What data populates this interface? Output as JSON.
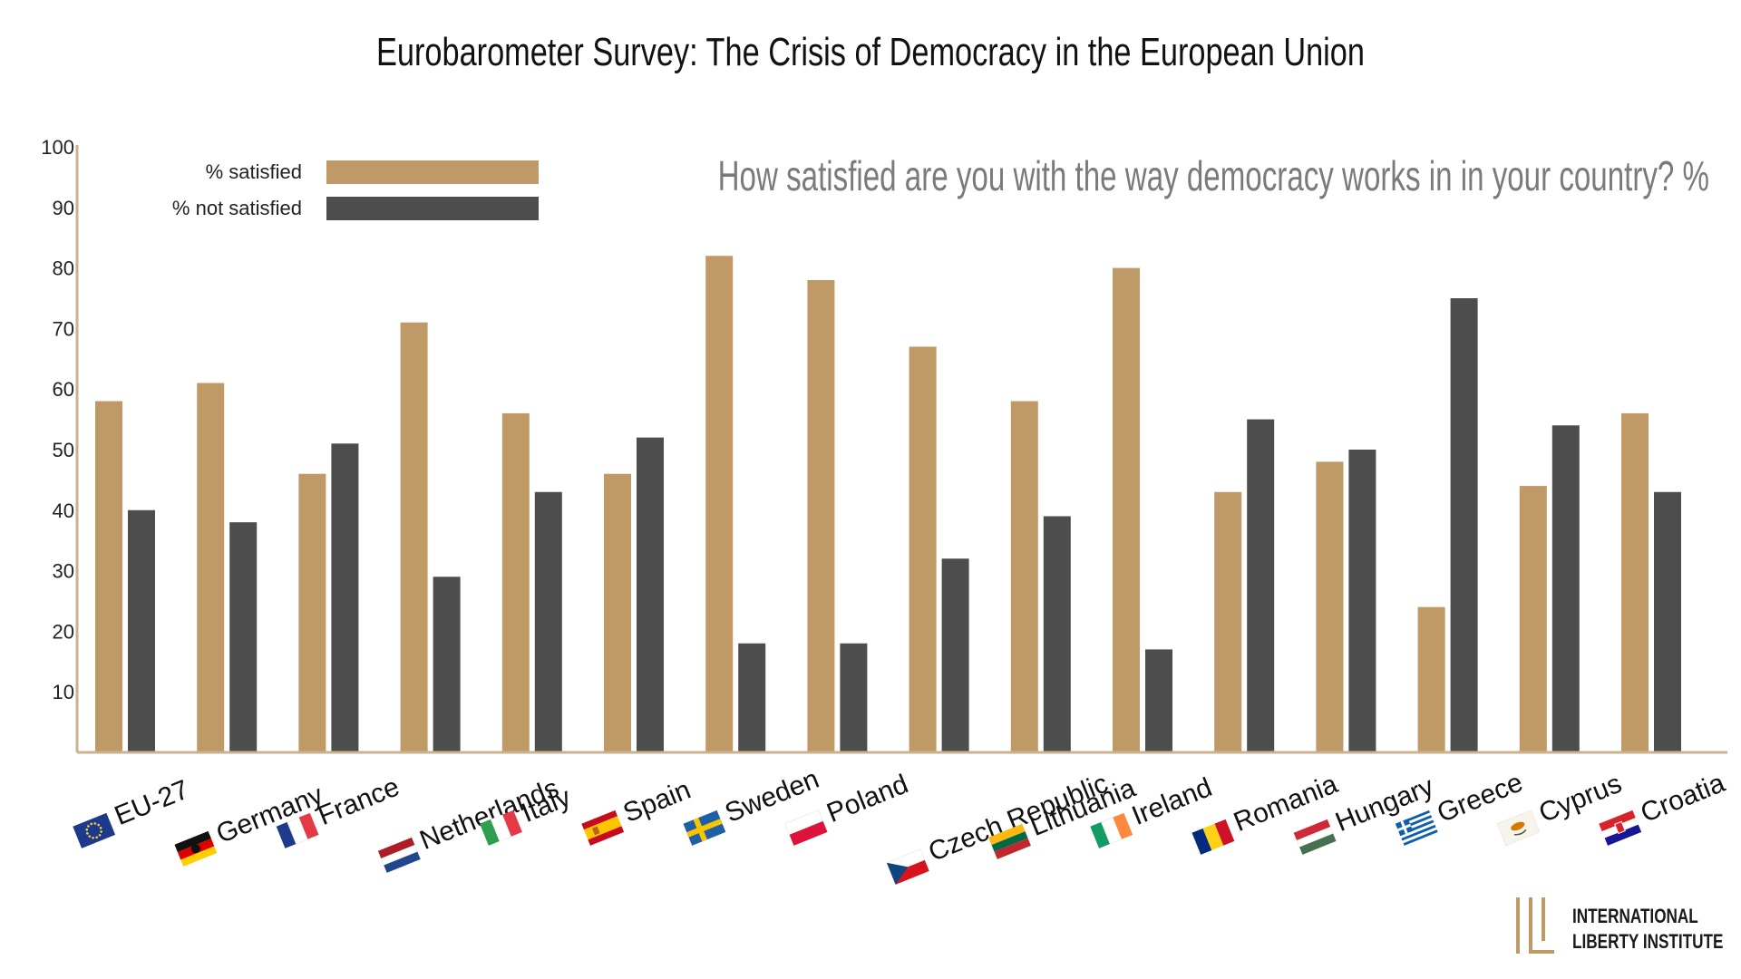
{
  "chart_data": {
    "type": "bar",
    "title": "Eurobarometer Survey: The Crisis of Democracy in the European Union",
    "subtitle": "How satisfied are you with the way democracy works in in your country? %",
    "categories": [
      "EU-27",
      "Germany",
      "France",
      "Netherlands",
      "Italy",
      "Spain",
      "Sweden",
      "Poland",
      "Czech Republic",
      "Lithuania",
      "Ireland",
      "Romania",
      "Hungary",
      "Greece",
      "Cyprus",
      "Croatia"
    ],
    "series": [
      {
        "name": "% satisfied",
        "color": "#BF9A66",
        "values": [
          58,
          61,
          46,
          71,
          56,
          46,
          82,
          78,
          67,
          58,
          80,
          43,
          48,
          24,
          44,
          56
        ]
      },
      {
        "name": "% not satisfied",
        "color": "#4D4D4D",
        "values": [
          40,
          38,
          51,
          29,
          43,
          52,
          18,
          18,
          32,
          39,
          17,
          55,
          50,
          75,
          54,
          43
        ]
      }
    ],
    "yticks": [
      10,
      20,
      30,
      40,
      50,
      60,
      70,
      80,
      90,
      100
    ],
    "ylim": [
      0,
      100
    ],
    "xlabel": "",
    "ylabel": "",
    "grid": false,
    "legend_position": "top-left",
    "axis_color": "#CBB28F",
    "flag_icons": [
      "eu-flag-icon",
      "germany-flag-icon",
      "france-flag-icon",
      "netherlands-flag-icon",
      "italy-flag-icon",
      "spain-flag-icon",
      "sweden-flag-icon",
      "poland-flag-icon",
      "czech-republic-flag-icon",
      "lithuania-flag-icon",
      "ireland-flag-icon",
      "romania-flag-icon",
      "hungary-flag-icon",
      "greece-flag-icon",
      "cyprus-flag-icon",
      "croatia-flag-icon"
    ]
  },
  "logo": {
    "line1": "INTERNATIONAL",
    "line2": "LIBERTY INSTITUTE",
    "icon": "ili-logo-icon",
    "color": "#BF9A66"
  }
}
